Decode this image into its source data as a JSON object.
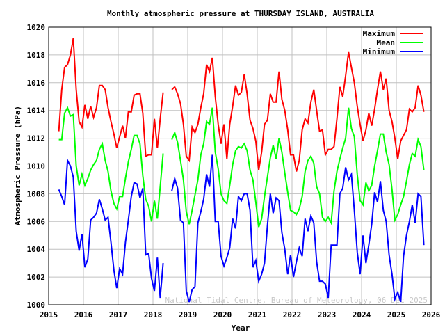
{
  "chart_data": {
    "type": "line",
    "title": "Monthly atmospheric pressure at THURSDAY ISLAND, AUSTRALIA",
    "xlabel": "Year",
    "ylabel": "Atmospheric Pressure (hPa)",
    "xlim": [
      2015,
      2026
    ],
    "ylim": [
      1000,
      1020
    ],
    "xticks": [
      "2015",
      "2016",
      "2017",
      "2018",
      "2019",
      "2020",
      "2021",
      "2022",
      "2023",
      "2024",
      "2025",
      "2026"
    ],
    "yticks": [
      "1000",
      "1002",
      "1004",
      "1006",
      "1008",
      "1010",
      "1012",
      "1014",
      "1016",
      "1018",
      "1020"
    ],
    "grid": true,
    "legend_position": "top-right",
    "credit": "National Tidal Centre, Bureau of Meteorology, 06 Dec 2025",
    "x": [
      "2015-04",
      "2015-05",
      "2015-06",
      "2015-07",
      "2015-08",
      "2015-09",
      "2015-10",
      "2015-11",
      "2015-12",
      "2016-01",
      "2016-02",
      "2016-03",
      "2016-04",
      "2016-05",
      "2016-06",
      "2016-07",
      "2016-08",
      "2016-09",
      "2016-10",
      "2016-11",
      "2016-12",
      "2017-01",
      "2017-02",
      "2017-03",
      "2017-04",
      "2017-05",
      "2017-06",
      "2017-07",
      "2017-08",
      "2017-09",
      "2017-10",
      "2017-11",
      "2017-12",
      "2018-01",
      "2018-02",
      "2018-03",
      "2018-04",
      "2018-05",
      "2018-06",
      "2018-07",
      "2018-08",
      "2018-09",
      "2018-10",
      "2018-11",
      "2018-12",
      "2019-01",
      "2019-02",
      "2019-03",
      "2019-04",
      "2019-05",
      "2019-06",
      "2019-07",
      "2019-08",
      "2019-09",
      "2019-10",
      "2019-11",
      "2019-12",
      "2020-01",
      "2020-02",
      "2020-03",
      "2020-04",
      "2020-05",
      "2020-06",
      "2020-07",
      "2020-08",
      "2020-09",
      "2020-10",
      "2020-11",
      "2020-12",
      "2021-01",
      "2021-02",
      "2021-03",
      "2021-04",
      "2021-05",
      "2021-06",
      "2021-07",
      "2021-08",
      "2021-09",
      "2021-10",
      "2021-11",
      "2021-12",
      "2022-01",
      "2022-02",
      "2022-03",
      "2022-04",
      "2022-05",
      "2022-06",
      "2022-07",
      "2022-08",
      "2022-09",
      "2022-10",
      "2022-11",
      "2022-12",
      "2023-01",
      "2023-02",
      "2023-03",
      "2023-04",
      "2023-05",
      "2023-06",
      "2023-07",
      "2023-08",
      "2023-09",
      "2023-10",
      "2023-11",
      "2023-12",
      "2024-01",
      "2024-02",
      "2024-03",
      "2024-04",
      "2024-05",
      "2024-06",
      "2024-07",
      "2024-08",
      "2024-09",
      "2024-10",
      "2024-11",
      "2024-12",
      "2025-01",
      "2025-02",
      "2025-03",
      "2025-04",
      "2025-05",
      "2025-06",
      "2025-07",
      "2025-08",
      "2025-09",
      "2025-10"
    ],
    "series": [
      {
        "name": "Maximum",
        "color": "#ff0000",
        "values": [
          1012.5,
          1015.5,
          1017.1,
          1017.3,
          1018.0,
          1019.2,
          1015.5,
          1013.2,
          1012.8,
          1014.4,
          1013.4,
          1014.3,
          1013.5,
          1014.2,
          1015.8,
          1015.8,
          1015.5,
          1014.2,
          1013.2,
          1012.3,
          1011.3,
          1012.1,
          1012.9,
          1012.0,
          1013.9,
          1013.9,
          1015.1,
          1015.2,
          1015.2,
          1013.8,
          1010.7,
          1010.8,
          1010.8,
          1013.4,
          1011.3,
          1013.4,
          1015.3,
          null,
          null,
          1015.5,
          1015.7,
          1015.2,
          1014.5,
          1013.0,
          1010.7,
          1010.4,
          1012.8,
          1012.4,
          1013.0,
          1014.2,
          1015.2,
          1017.3,
          1016.8,
          1017.8,
          1015.0,
          1013.0,
          1011.6,
          1013.0,
          1010.5,
          1013.0,
          1014.3,
          1015.8,
          1015.1,
          1015.3,
          1016.6,
          1015.2,
          1013.3,
          1012.7,
          1011.8,
          1009.7,
          1011.0,
          1013.0,
          1013.3,
          1015.2,
          1014.6,
          1014.6,
          1016.8,
          1014.8,
          1014.0,
          1012.6,
          1010.8,
          1010.8,
          1009.6,
          1010.4,
          1012.6,
          1013.4,
          1013.1,
          1014.6,
          1015.5,
          1014.0,
          1012.5,
          1012.6,
          1010.8,
          1011.2,
          1011.2,
          1011.4,
          1013.4,
          1015.7,
          1015.0,
          1016.5,
          1018.2,
          1017.1,
          1016.0,
          1014.3,
          1013.0,
          1011.8,
          1012.6,
          1013.8,
          1012.9,
          1014.1,
          1015.5,
          1016.8,
          1015.5,
          1016.3,
          1014.0,
          1013.2,
          1012.0,
          1010.5,
          1011.8,
          1012.2,
          1012.6,
          1014.1,
          1013.9,
          1014.2,
          1015.8,
          1015.1,
          1013.9
        ]
      },
      {
        "name": "Mean",
        "color": "#00ff00",
        "values": [
          1011.9,
          1011.9,
          1013.8,
          1014.2,
          1013.6,
          1013.7,
          1010.0,
          1008.6,
          1009.4,
          1008.6,
          1009.1,
          1009.7,
          1010.1,
          1010.4,
          1011.2,
          1011.6,
          1010.4,
          1009.6,
          1008.2,
          1007.3,
          1006.9,
          1007.8,
          1007.8,
          1009.1,
          1010.3,
          1011.2,
          1012.2,
          1012.2,
          1011.6,
          1009.3,
          1007.6,
          1007.1,
          1006.0,
          1007.5,
          1006.2,
          1008.5,
          1010.9,
          null,
          null,
          1011.9,
          1012.4,
          1011.7,
          1010.4,
          1009.0,
          1006.7,
          1005.8,
          1006.8,
          1007.9,
          1009.0,
          1010.8,
          1011.6,
          1013.2,
          1013.0,
          1014.2,
          1011.0,
          1009.8,
          1008.0,
          1007.5,
          1007.3,
          1008.6,
          1010.1,
          1011.1,
          1011.4,
          1011.3,
          1011.6,
          1011.1,
          1009.7,
          1009.0,
          1007.4,
          1005.6,
          1006.2,
          1007.8,
          1009.2,
          1010.6,
          1011.5,
          1010.5,
          1012.0,
          1011.0,
          1009.5,
          1008.1,
          1006.8,
          1006.7,
          1006.5,
          1006.9,
          1007.8,
          1009.6,
          1010.4,
          1010.7,
          1010.2,
          1008.5,
          1008.0,
          1006.3,
          1006.0,
          1006.3,
          1005.9,
          1008.2,
          1009.6,
          1010.5,
          1011.3,
          1012.0,
          1014.2,
          1012.7,
          1012.1,
          1009.4,
          1007.5,
          1007.2,
          1008.8,
          1008.2,
          1008.6,
          1010.0,
          1011.1,
          1012.3,
          1012.3,
          1011.0,
          1010.1,
          1008.3,
          1006.1,
          1006.5,
          1007.2,
          1007.8,
          1008.9,
          1010.1,
          1010.9,
          1010.7,
          1011.9,
          1011.4,
          1009.7
        ]
      },
      {
        "name": "Minimum",
        "color": "#0000ff",
        "values": [
          1008.3,
          1007.8,
          1007.2,
          1010.4,
          1010.0,
          1009.2,
          1005.3,
          1003.9,
          1005.1,
          1002.7,
          1003.3,
          1006.1,
          1006.3,
          1006.6,
          1007.6,
          1006.9,
          1006.1,
          1006.3,
          1004.5,
          1002.5,
          1001.2,
          1002.6,
          1002.2,
          1004.5,
          1006.1,
          1007.8,
          1008.8,
          1008.7,
          1007.7,
          1008.4,
          1003.6,
          1003.7,
          1001.9,
          1001.0,
          1003.4,
          1000.5,
          1003.0,
          null,
          null,
          1008.2,
          1009.1,
          1008.4,
          1006.1,
          1005.9,
          1001.0,
          1000.2,
          1001.1,
          1001.3,
          1005.9,
          1006.7,
          1007.6,
          1009.4,
          1008.5,
          1010.8,
          1006.0,
          1006.0,
          1003.5,
          1002.8,
          1003.4,
          1004.1,
          1006.2,
          1005.5,
          1007.8,
          1007.5,
          1008.0,
          1008.0,
          1006.8,
          1002.7,
          1003.2,
          1001.7,
          1002.2,
          1003.0,
          1005.7,
          1008.0,
          1006.6,
          1007.7,
          1007.5,
          1005.2,
          1004.0,
          1002.2,
          1003.6,
          1002.0,
          1003.1,
          1004.1,
          1003.5,
          1006.2,
          1005.3,
          1006.4,
          1005.9,
          1003.1,
          1001.7,
          1001.7,
          1001.5,
          1000.5,
          1004.3,
          1004.3,
          1004.3,
          1008.0,
          1008.4,
          1009.9,
          1009.0,
          1009.4,
          1006.8,
          1003.8,
          1002.2,
          1005.0,
          1003.0,
          1004.3,
          1005.8,
          1008.1,
          1007.4,
          1008.9,
          1006.8,
          1006.0,
          1003.6,
          1002.2,
          1000.4,
          1000.9,
          1000.2,
          1003.5,
          1005.0,
          1006.0,
          1007.2,
          1005.9,
          1008.0,
          1007.8,
          1004.3
        ]
      }
    ]
  }
}
